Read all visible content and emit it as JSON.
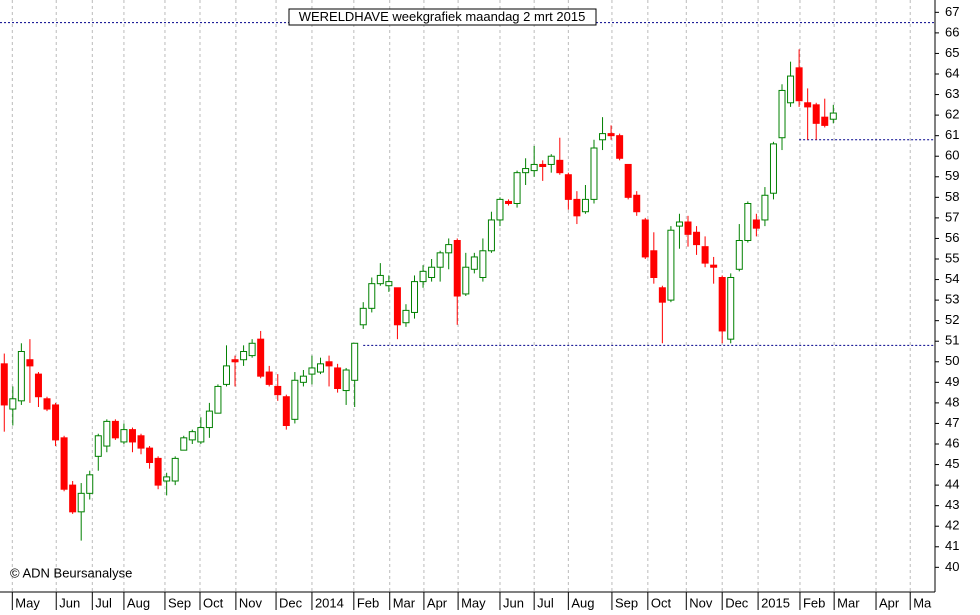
{
  "chart_data": {
    "type": "candlestick",
    "title": "WERELDHAVE weekgrafiek maandag 2 mrt 2015",
    "credit": "© ADN Beursanalyse",
    "up_color": "#008000",
    "down_color": "#ff0000",
    "x": [
      0,
      1,
      2,
      3,
      4,
      5,
      6,
      7,
      8,
      9,
      10,
      11,
      12,
      13,
      14,
      15,
      16,
      17,
      18,
      19,
      20,
      21,
      22,
      23,
      24,
      25,
      26,
      27,
      28,
      29,
      30,
      31,
      32,
      33,
      34,
      35,
      36,
      37,
      38,
      39,
      40,
      41,
      42,
      43,
      44,
      45,
      46,
      47,
      48,
      49,
      50,
      51,
      52,
      53,
      54,
      55,
      56,
      57,
      58,
      59,
      60,
      61,
      62,
      63,
      64,
      65,
      66,
      67,
      68,
      69,
      70,
      71,
      72,
      73,
      74,
      75,
      76,
      77,
      78,
      79,
      80,
      81,
      82,
      83,
      84,
      85,
      86,
      87,
      88,
      89,
      90,
      91,
      92,
      93,
      94,
      95,
      96,
      97
    ],
    "open": [
      49.9,
      47.7,
      48.1,
      50.1,
      49.4,
      48.2,
      47.9,
      46.3,
      44,
      42.7,
      43.6,
      45.4,
      45.9,
      47.1,
      46.1,
      46.7,
      46.4,
      45.8,
      45.3,
      44.2,
      44.2,
      45.7,
      46.2,
      46.1,
      46.8,
      47.5,
      48.9,
      50.1,
      50.1,
      50.3,
      51.1,
      49.5,
      48.8,
      48.3,
      47.2,
      49,
      49.4,
      49.5,
      50,
      49.7,
      48.6,
      49.1,
      51.8,
      52.6,
      53.8,
      53.7,
      53.6,
      51.9,
      52.4,
      53.9,
      54.1,
      54.6,
      55.3,
      55.9,
      53.3,
      54.5,
      54.1,
      55.4,
      56.9,
      57.8,
      57.7,
      59.2,
      59.3,
      59.6,
      59.6,
      59.8,
      59.1,
      57.9,
      57.3,
      57.9,
      60.8,
      61.1,
      61,
      59.6,
      58.1,
      56.9,
      55.4,
      53.6,
      53,
      56.6,
      56.8,
      56.3,
      55.6,
      54.7,
      54.1,
      51.1,
      54.5,
      55.9,
      56.9,
      56.9,
      58.2,
      60.9,
      62.6,
      64.3,
      62.6,
      62.5,
      61.9,
      61.8
    ],
    "high": [
      50.4,
      48.8,
      50.9,
      51.1,
      49.5,
      48.3,
      48,
      46.4,
      44.2,
      44.1,
      44.7,
      46.5,
      47.2,
      47.2,
      47,
      46.8,
      46.5,
      45.9,
      45.4,
      44.6,
      45.4,
      46.4,
      46.7,
      47.3,
      48,
      48.9,
      50.8,
      50.3,
      50.8,
      51.1,
      51.5,
      49.8,
      49.4,
      48.4,
      49.5,
      49.6,
      50.3,
      50.2,
      50.3,
      49.9,
      49.7,
      50.9,
      52.9,
      54.1,
      54.8,
      54.2,
      53.6,
      52.8,
      54.2,
      54.7,
      55,
      55.4,
      56,
      56,
      55.3,
      55.3,
      56,
      57.3,
      58,
      57.9,
      59.3,
      59.9,
      60.5,
      59.8,
      60.1,
      60.9,
      59.2,
      58.3,
      58.6,
      60.8,
      61.9,
      61.5,
      61.1,
      59.6,
      58.3,
      57,
      56.3,
      53.7,
      56.6,
      57.2,
      57.1,
      56.6,
      56.1,
      55.1,
      54.2,
      54.3,
      56.7,
      57.8,
      57.2,
      58.5,
      60.7,
      63.5,
      64.6,
      65.2,
      63.3,
      62.6,
      62.8,
      62.5
    ],
    "low": [
      46.6,
      46.9,
      47.9,
      48,
      47.8,
      47.6,
      45.9,
      43.7,
      42.6,
      41.3,
      43.3,
      44.7,
      45.6,
      46.2,
      46,
      45.6,
      45.5,
      44.8,
      43.8,
      43.5,
      44,
      45.7,
      46,
      46,
      46.3,
      47.5,
      48.8,
      48.8,
      49.8,
      50.2,
      49.2,
      48.8,
      48.1,
      46.7,
      47,
      48.8,
      48.9,
      49.4,
      48.8,
      48.5,
      47.9,
      47.8,
      51.6,
      52.4,
      53.7,
      53.4,
      51.1,
      51.7,
      52.1,
      53.6,
      53.9,
      53.9,
      54.5,
      51.8,
      53.2,
      54.3,
      53.9,
      55.3,
      56.6,
      57.6,
      57.5,
      58.6,
      59,
      58.8,
      59.2,
      59.1,
      57.4,
      56.7,
      57.2,
      57.7,
      60.3,
      60.8,
      59.8,
      57.9,
      57.1,
      55,
      53.8,
      50.9,
      52.9,
      55.5,
      55.6,
      55.2,
      54.6,
      53.8,
      50.9,
      50.9,
      54.4,
      55.8,
      56.1,
      56.6,
      57.9,
      60.3,
      62.4,
      62.4,
      60.8,
      60.8,
      61.4,
      61.6
    ],
    "close": [
      47.9,
      48.2,
      50.5,
      49.8,
      48.3,
      47.7,
      46.2,
      43.8,
      42.7,
      43.6,
      44.5,
      46.4,
      47.1,
      46.3,
      46.7,
      46.1,
      45.8,
      45.1,
      44,
      44.4,
      45.3,
      46.3,
      46.6,
      46.8,
      47.6,
      48.8,
      49.8,
      50,
      50.5,
      50.9,
      49.3,
      48.9,
      48.4,
      46.9,
      49.1,
      49.3,
      49.7,
      49.9,
      49.8,
      48.7,
      49.6,
      50.9,
      52.6,
      53.8,
      54.2,
      53.9,
      51.8,
      52.5,
      53.9,
      54.4,
      54.6,
      55.3,
      55.7,
      53.2,
      54.6,
      55.1,
      55.4,
      56.9,
      57.9,
      57.7,
      59.2,
      59.4,
      59.6,
      59.5,
      60,
      59.2,
      57.9,
      57.1,
      57.9,
      60.4,
      61.1,
      61,
      59.9,
      58,
      57.3,
      55.1,
      54.1,
      52.9,
      56.4,
      56.8,
      56.2,
      55.7,
      54.8,
      54.6,
      51.5,
      54.1,
      55.9,
      57.7,
      56.5,
      58.1,
      60.6,
      63.2,
      63.9,
      62.7,
      62.4,
      61.6,
      61.5,
      62.1
    ],
    "reference_lines": [
      {
        "y": 66.5,
        "x0": -0.5
      },
      {
        "y": 60.8,
        "x0": 93
      },
      {
        "y": 50.8,
        "x0": 42
      }
    ],
    "xlim": [
      -0.5,
      108.9
    ],
    "ylim": [
      38.8,
      67.6
    ],
    "xticks": [
      {
        "value": 0.94,
        "label": "May"
      },
      {
        "value": 6.08,
        "label": "Jun"
      },
      {
        "value": 10.3,
        "label": "Jul"
      },
      {
        "value": 14,
        "label": "Aug"
      },
      {
        "value": 18.8,
        "label": "Sep"
      },
      {
        "value": 22.9,
        "label": "Oct"
      },
      {
        "value": 27.1,
        "label": "Nov"
      },
      {
        "value": 31.8,
        "label": "Dec"
      },
      {
        "value": 36,
        "label": "2014"
      },
      {
        "value": 40.9,
        "label": "Feb"
      },
      {
        "value": 45.1,
        "label": "Mar"
      },
      {
        "value": 49.1,
        "label": "Apr"
      },
      {
        "value": 53.1,
        "label": "May"
      },
      {
        "value": 58,
        "label": "Jun"
      },
      {
        "value": 62,
        "label": "Jul"
      },
      {
        "value": 66,
        "label": "Aug"
      },
      {
        "value": 71.1,
        "label": "Sep"
      },
      {
        "value": 75.3,
        "label": "Oct"
      },
      {
        "value": 79.8,
        "label": "Nov"
      },
      {
        "value": 84,
        "label": "Dec"
      },
      {
        "value": 88.2,
        "label": "2015"
      },
      {
        "value": 93.1,
        "label": "Feb"
      },
      {
        "value": 97.1,
        "label": "Mar"
      },
      {
        "value": 102,
        "label": "Apr"
      },
      {
        "value": 106,
        "label": "Ma"
      }
    ],
    "yticks": [
      40,
      41,
      42,
      43,
      44,
      45,
      46,
      47,
      48,
      49,
      50,
      51,
      52,
      53,
      54,
      55,
      56,
      57,
      58,
      59,
      60,
      61,
      62,
      63,
      64,
      65,
      66,
      67
    ],
    "grid": true
  }
}
